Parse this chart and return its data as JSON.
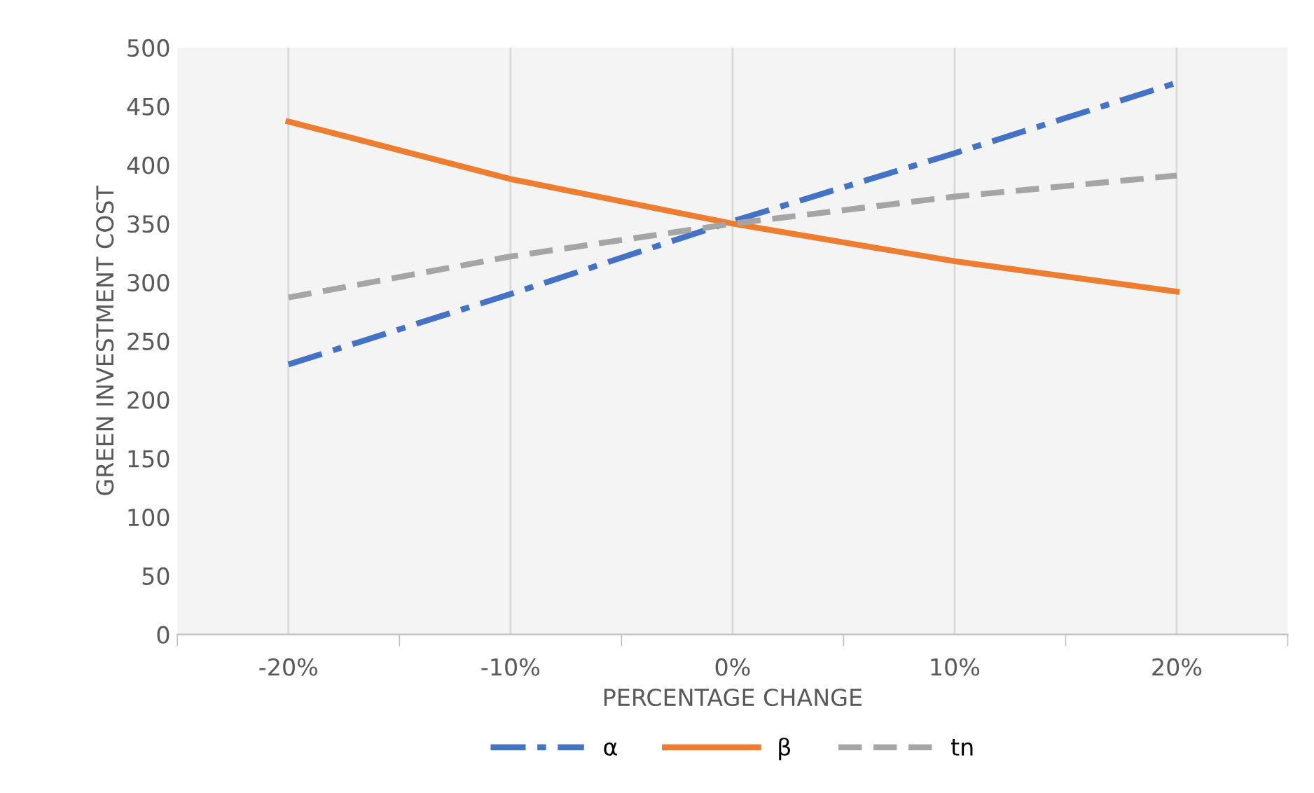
{
  "chart_data": {
    "type": "line",
    "xlabel": "PERCENTAGE CHANGE",
    "ylabel": "GREEN INVESTMENT COST",
    "categories": [
      "-20%",
      "-10%",
      "0%",
      "10%",
      "20%"
    ],
    "series": [
      {
        "name": "α",
        "color": "#4472c4",
        "line_style": "dashdot",
        "values": [
          230,
          290,
          352,
          410,
          470
        ]
      },
      {
        "name": "β",
        "color": "#ed7d31",
        "line_style": "solid",
        "values": [
          437,
          388,
          350,
          318,
          292
        ]
      },
      {
        "name": "tn",
        "color": "#a5a5a5",
        "line_style": "dashed",
        "values": [
          287,
          322,
          350,
          373,
          391
        ]
      }
    ],
    "ylim": [
      0,
      500
    ],
    "yticks": [
      0,
      50,
      100,
      150,
      200,
      250,
      300,
      350,
      400,
      450,
      500
    ],
    "grid": "x",
    "legend": "bottom",
    "marker": "none"
  }
}
